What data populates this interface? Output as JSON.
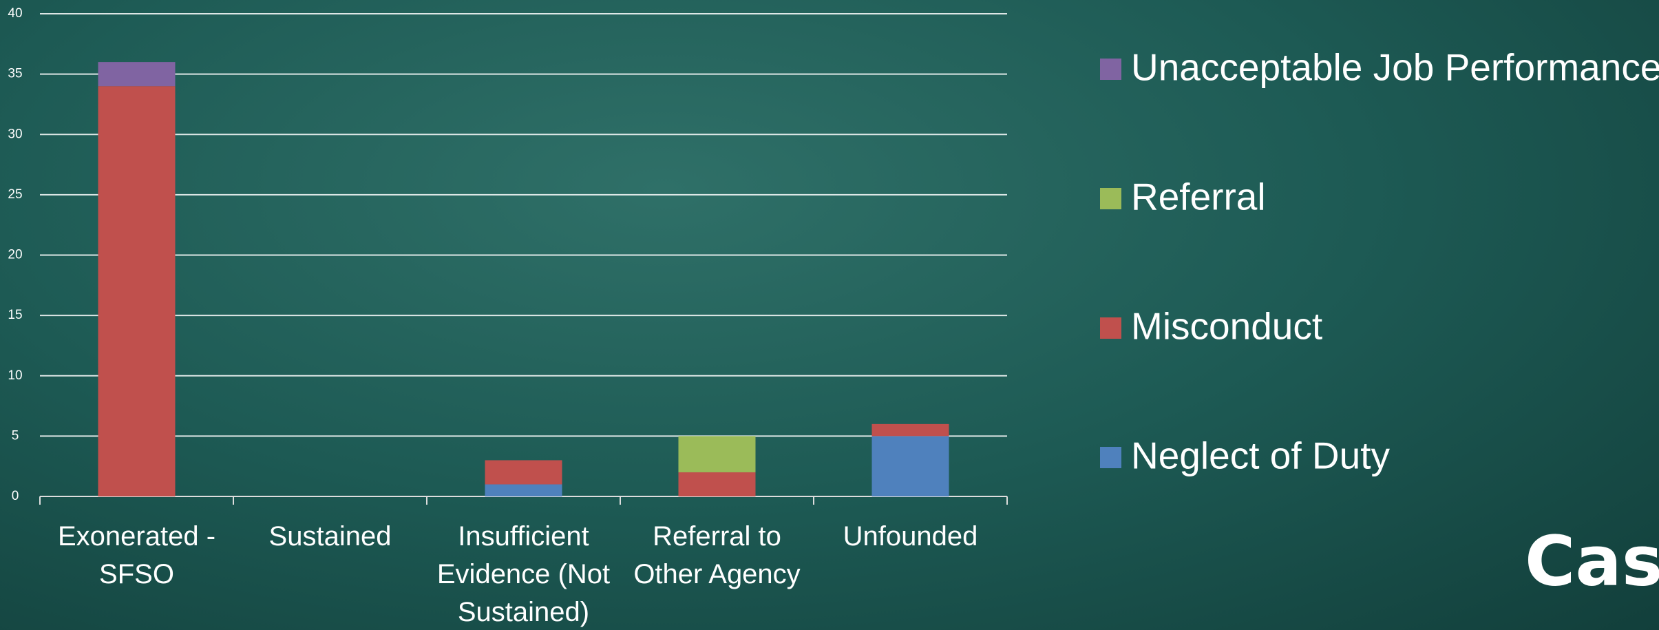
{
  "chart_data": {
    "type": "stacked_bar",
    "categories": [
      "Exonerated - SFSO",
      "Sustained",
      "Insufficient Evidence (Not Sustained)",
      "Referral to Other Agency",
      "Unfounded"
    ],
    "series": [
      {
        "name": "Neglect of Duty",
        "color": "#4f81bd",
        "values": [
          0,
          0,
          1,
          0,
          5
        ]
      },
      {
        "name": "Misconduct",
        "color": "#c0504d",
        "values": [
          34,
          0,
          2,
          2,
          1
        ]
      },
      {
        "name": "Referral",
        "color": "#9bbb59",
        "values": [
          0,
          0,
          0,
          3,
          0
        ]
      },
      {
        "name": "Unacceptable Job Performance",
        "color": "#8064a2",
        "values": [
          2,
          0,
          0,
          0,
          0
        ]
      }
    ],
    "ylim": [
      0,
      40
    ],
    "yticks": [
      0,
      5,
      10,
      15,
      20,
      25,
      30,
      35,
      40
    ],
    "grid": true,
    "legend": "right",
    "annotation": "Cas"
  }
}
